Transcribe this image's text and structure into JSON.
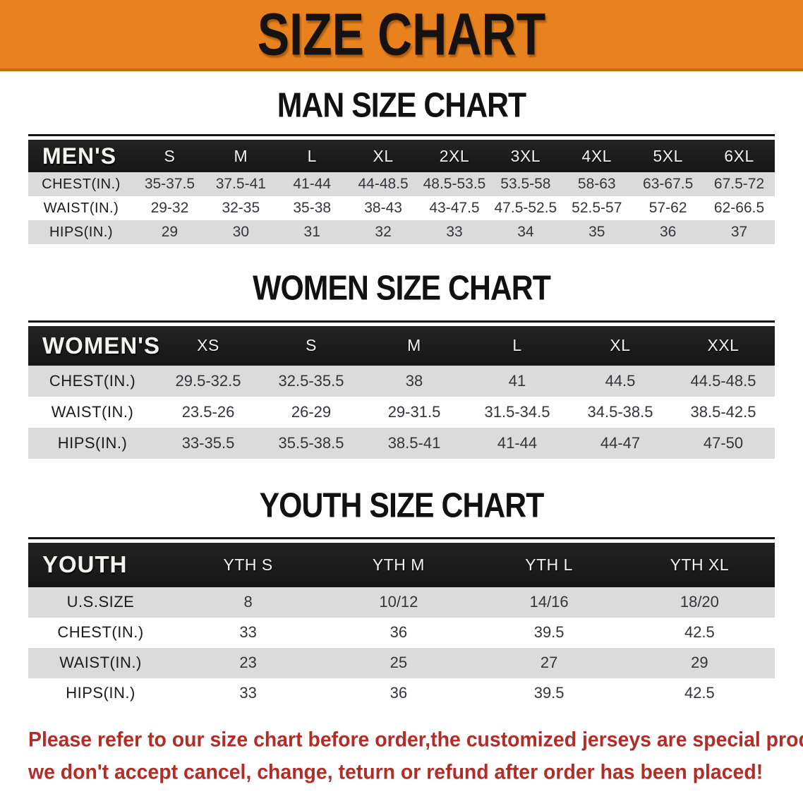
{
  "banner": {
    "title": "SIZE CHART",
    "bg": "#E8821F",
    "border_color": "#C26E12"
  },
  "sections": [
    {
      "heading": "MAN SIZE CHART",
      "table": {
        "label": "MEN'S",
        "columns": [
          "S",
          "M",
          "L",
          "XL",
          "2XL",
          "3XL",
          "4XL",
          "5XL",
          "6XL"
        ],
        "rows": [
          {
            "label": "CHEST(IN.)",
            "values": [
              "35-37.5",
              "37.5-41",
              "41-44",
              "44-48.5",
              "48.5-53.5",
              "53.5-58",
              "58-63",
              "63-67.5",
              "67.5-72"
            ]
          },
          {
            "label": "WAIST(IN.)",
            "values": [
              "29-32",
              "32-35",
              "35-38",
              "38-43",
              "43-47.5",
              "47.5-52.5",
              "52.5-57",
              "57-62",
              "62-66.5"
            ]
          },
          {
            "label": "HIPS(IN.)",
            "values": [
              "29",
              "30",
              "31",
              "32",
              "33",
              "34",
              "35",
              "36",
              "37"
            ]
          }
        ]
      }
    },
    {
      "heading": "WOMEN SIZE CHART",
      "table": {
        "label": "WOMEN'S",
        "columns": [
          "XS",
          "S",
          "M",
          "L",
          "XL",
          "XXL"
        ],
        "rows": [
          {
            "label": "CHEST(IN.)",
            "values": [
              "29.5-32.5",
              "32.5-35.5",
              "38",
              "41",
              "44.5",
              "44.5-48.5"
            ]
          },
          {
            "label": "WAIST(IN.)",
            "values": [
              "23.5-26",
              "26-29",
              "29-31.5",
              "31.5-34.5",
              "34.5-38.5",
              "38.5-42.5"
            ]
          },
          {
            "label": "HIPS(IN.)",
            "values": [
              "33-35.5",
              "35.5-38.5",
              "38.5-41",
              "41-44",
              "44-47",
              "47-50"
            ]
          }
        ]
      }
    },
    {
      "heading": "YOUTH SIZE CHART",
      "table": {
        "label": "YOUTH",
        "columns": [
          "YTH S",
          "YTH M",
          "YTH L",
          "YTH XL"
        ],
        "rows": [
          {
            "label": "U.S.SIZE",
            "values": [
              "8",
              "10/12",
              "14/16",
              "18/20"
            ]
          },
          {
            "label": "CHEST(IN.)",
            "values": [
              "33",
              "36",
              "39.5",
              "42.5"
            ]
          },
          {
            "label": "WAIST(IN.)",
            "values": [
              "23",
              "25",
              "27",
              "29"
            ]
          },
          {
            "label": "HIPS(IN.)",
            "values": [
              "33",
              "36",
              "39.5",
              "42.5"
            ]
          }
        ]
      }
    }
  ],
  "footer": {
    "line1": "Please refer to our size chart before order,the customized jerseys are special products,",
    "line2": "we don't accept cancel, change, teturn or refund after order has been placed!",
    "color": "#B22D28"
  },
  "style_colors": {
    "header_bar": "#161616",
    "stripe_gray": "#DBDBDB"
  }
}
